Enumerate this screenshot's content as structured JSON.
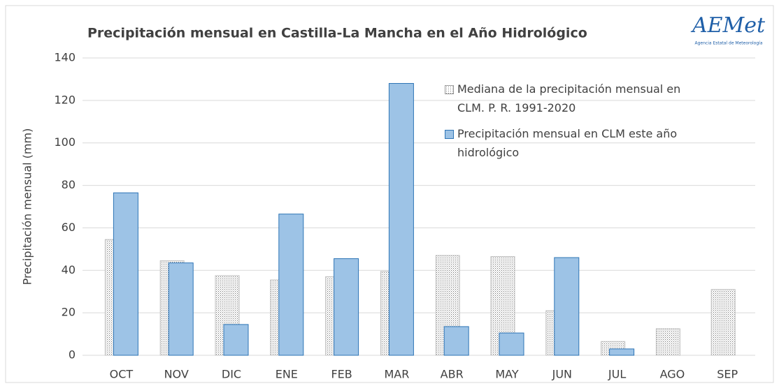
{
  "logo": {
    "text": "AEMet",
    "subtitle": "Agencia Estatal de Meteorología"
  },
  "chart_data": {
    "type": "bar",
    "title": "Precipitación mensual en Castilla-La Mancha en el Año Hidrológico",
    "y_label": "Precipitación mensual (mm)",
    "categories": [
      "OCT",
      "NOV",
      "DIC",
      "ENE",
      "FEB",
      "MAR",
      "ABR",
      "MAY",
      "JUN",
      "JUL",
      "AGO",
      "SEP"
    ],
    "series": [
      {
        "name": "Mediana de la precipitación mensual en CLM. P. R. 1991-2020",
        "color": "#d9d9d9",
        "pattern": "dots",
        "values": [
          54.5,
          44.5,
          37.5,
          35.5,
          37,
          39.5,
          47,
          46.5,
          21,
          6.5,
          12.5,
          31
        ]
      },
      {
        "name": "Precipitación mensual en CLM este año hidrológico",
        "color": "#9dc3e6",
        "values": [
          76.5,
          43.5,
          14.5,
          66.5,
          45.5,
          128,
          13.5,
          10.5,
          46,
          3,
          null,
          null
        ]
      }
    ],
    "ylim": [
      0,
      140
    ],
    "yticks": [
      0,
      20,
      40,
      60,
      80,
      100,
      120,
      140
    ],
    "grid": true
  }
}
